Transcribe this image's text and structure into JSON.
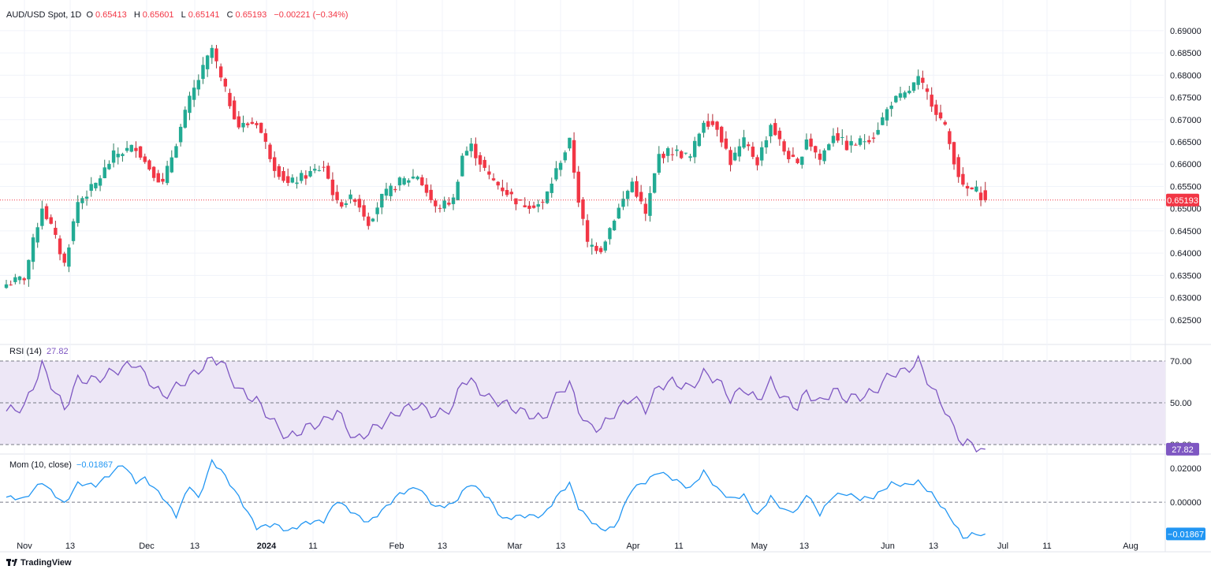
{
  "symbol_legend": {
    "title": "AUD/USD Spot, 1D",
    "open_label": "O",
    "open": "0.65413",
    "high_label": "H",
    "high": "0.65601",
    "low_label": "L",
    "low": "0.65141",
    "close_label": "C",
    "close": "0.65193",
    "change": "−0.00221 (−0.34%)"
  },
  "rsi_legend": {
    "label": "RSI (14)",
    "value": "27.82"
  },
  "mom_legend": {
    "label": "Mom (10, close)",
    "value": "−0.01867"
  },
  "brand": "TradingView",
  "colors": {
    "up": "#22ab94",
    "down": "#f23645",
    "up_wick": "#2e7d60",
    "down_wick": "#b22833",
    "rsi_line": "#7e57c2",
    "rsi_band": "#ede7f6",
    "mom_line": "#2196f3",
    "grid": "#f0f3fa",
    "axis_text": "#131722",
    "last_price": "#f23645"
  },
  "chart_data": [
    {
      "type": "candlestick",
      "title": "AUD/USD Spot, 1D",
      "ylim": [
        0.62,
        0.693
      ],
      "y_ticks": [
        "0.62500",
        "0.63000",
        "0.63500",
        "0.64000",
        "0.64500",
        "0.65000",
        "0.65500",
        "0.66000",
        "0.66500",
        "0.67000",
        "0.67500",
        "0.68000",
        "0.68500",
        "0.69000"
      ],
      "x_ticks": [
        "Nov",
        "13",
        "Dec",
        "13",
        "2024",
        "11",
        "Feb",
        "13",
        "Mar",
        "13",
        "Apr",
        "11",
        "May",
        "13",
        "Jun",
        "13",
        "Jul",
        "11",
        "Aug"
      ],
      "last_price": "0.65193",
      "close_path": [
        {
          "bar": 0,
          "close": 0.633
        },
        {
          "bar": 4,
          "close": 0.6345
        },
        {
          "bar": 8,
          "close": 0.6505
        },
        {
          "bar": 10,
          "close": 0.646
        },
        {
          "bar": 13,
          "close": 0.6375
        },
        {
          "bar": 16,
          "close": 0.6515
        },
        {
          "bar": 20,
          "close": 0.6555
        },
        {
          "bar": 24,
          "close": 0.662
        },
        {
          "bar": 29,
          "close": 0.664
        },
        {
          "bar": 31,
          "close": 0.6605
        },
        {
          "bar": 35,
          "close": 0.6555
        },
        {
          "bar": 41,
          "close": 0.6745
        },
        {
          "bar": 46,
          "close": 0.686
        },
        {
          "bar": 48,
          "close": 0.679
        },
        {
          "bar": 52,
          "close": 0.6685
        },
        {
          "bar": 56,
          "close": 0.6695
        },
        {
          "bar": 60,
          "close": 0.6595
        },
        {
          "bar": 63,
          "close": 0.6555
        },
        {
          "bar": 67,
          "close": 0.6575
        },
        {
          "bar": 71,
          "close": 0.6595
        },
        {
          "bar": 74,
          "close": 0.651
        },
        {
          "bar": 78,
          "close": 0.6525
        },
        {
          "bar": 81,
          "close": 0.647
        },
        {
          "bar": 84,
          "close": 0.6525
        },
        {
          "bar": 88,
          "close": 0.656
        },
        {
          "bar": 92,
          "close": 0.6575
        },
        {
          "bar": 96,
          "close": 0.65
        },
        {
          "bar": 100,
          "close": 0.652
        },
        {
          "bar": 102,
          "close": 0.662
        },
        {
          "bar": 104,
          "close": 0.664
        },
        {
          "bar": 108,
          "close": 0.657
        },
        {
          "bar": 111,
          "close": 0.6545
        },
        {
          "bar": 115,
          "close": 0.651
        },
        {
          "bar": 120,
          "close": 0.651
        },
        {
          "bar": 124,
          "close": 0.661
        },
        {
          "bar": 126,
          "close": 0.665
        },
        {
          "bar": 128,
          "close": 0.652
        },
        {
          "bar": 130,
          "close": 0.642
        },
        {
          "bar": 133,
          "close": 0.641
        },
        {
          "bar": 136,
          "close": 0.648
        },
        {
          "bar": 140,
          "close": 0.656
        },
        {
          "bar": 143,
          "close": 0.6485
        },
        {
          "bar": 146,
          "close": 0.662
        },
        {
          "bar": 149,
          "close": 0.663
        },
        {
          "bar": 153,
          "close": 0.6615
        },
        {
          "bar": 156,
          "close": 0.67
        },
        {
          "bar": 159,
          "close": 0.6685
        },
        {
          "bar": 162,
          "close": 0.6605
        },
        {
          "bar": 165,
          "close": 0.665
        },
        {
          "bar": 168,
          "close": 0.6605
        },
        {
          "bar": 171,
          "close": 0.669
        },
        {
          "bar": 174,
          "close": 0.663
        },
        {
          "bar": 177,
          "close": 0.6595
        },
        {
          "bar": 179,
          "close": 0.666
        },
        {
          "bar": 182,
          "close": 0.661
        },
        {
          "bar": 185,
          "close": 0.667
        },
        {
          "bar": 188,
          "close": 0.664
        },
        {
          "bar": 191,
          "close": 0.665
        },
        {
          "bar": 194,
          "close": 0.6665
        },
        {
          "bar": 198,
          "close": 0.674
        },
        {
          "bar": 201,
          "close": 0.6755
        },
        {
          "bar": 204,
          "close": 0.679
        },
        {
          "bar": 207,
          "close": 0.674
        },
        {
          "bar": 210,
          "close": 0.668
        },
        {
          "bar": 212,
          "close": 0.661
        },
        {
          "bar": 214,
          "close": 0.6545
        },
        {
          "bar": 217,
          "close": 0.654
        },
        {
          "bar": 219,
          "close": 0.65193
        }
      ]
    },
    {
      "type": "line",
      "title": "RSI (14)",
      "ylim": [
        27.0,
        73.0
      ],
      "band": [
        30,
        70
      ],
      "y_ticks": [
        "30.00",
        "50.00",
        "70.00"
      ],
      "last_value": "27.82",
      "points": [
        {
          "bar": 0,
          "value": 46
        },
        {
          "bar": 4,
          "value": 48
        },
        {
          "bar": 8,
          "value": 68
        },
        {
          "bar": 10,
          "value": 59
        },
        {
          "bar": 13,
          "value": 47
        },
        {
          "bar": 16,
          "value": 61
        },
        {
          "bar": 20,
          "value": 61
        },
        {
          "bar": 24,
          "value": 65
        },
        {
          "bar": 29,
          "value": 69
        },
        {
          "bar": 31,
          "value": 63
        },
        {
          "bar": 35,
          "value": 53
        },
        {
          "bar": 41,
          "value": 62
        },
        {
          "bar": 46,
          "value": 71
        },
        {
          "bar": 48,
          "value": 70
        },
        {
          "bar": 52,
          "value": 56
        },
        {
          "bar": 56,
          "value": 51
        },
        {
          "bar": 60,
          "value": 40
        },
        {
          "bar": 63,
          "value": 33
        },
        {
          "bar": 67,
          "value": 38
        },
        {
          "bar": 71,
          "value": 41
        },
        {
          "bar": 74,
          "value": 46
        },
        {
          "bar": 78,
          "value": 32
        },
        {
          "bar": 81,
          "value": 36
        },
        {
          "bar": 84,
          "value": 40
        },
        {
          "bar": 88,
          "value": 46
        },
        {
          "bar": 92,
          "value": 49
        },
        {
          "bar": 96,
          "value": 44
        },
        {
          "bar": 100,
          "value": 48
        },
        {
          "bar": 102,
          "value": 61
        },
        {
          "bar": 104,
          "value": 60
        },
        {
          "bar": 108,
          "value": 52
        },
        {
          "bar": 111,
          "value": 50
        },
        {
          "bar": 115,
          "value": 46
        },
        {
          "bar": 120,
          "value": 42
        },
        {
          "bar": 124,
          "value": 56
        },
        {
          "bar": 126,
          "value": 59
        },
        {
          "bar": 128,
          "value": 47
        },
        {
          "bar": 130,
          "value": 39
        },
        {
          "bar": 133,
          "value": 38
        },
        {
          "bar": 136,
          "value": 45
        },
        {
          "bar": 140,
          "value": 53
        },
        {
          "bar": 143,
          "value": 47
        },
        {
          "bar": 146,
          "value": 58
        },
        {
          "bar": 149,
          "value": 60
        },
        {
          "bar": 153,
          "value": 57
        },
        {
          "bar": 156,
          "value": 64
        },
        {
          "bar": 159,
          "value": 61
        },
        {
          "bar": 162,
          "value": 52
        },
        {
          "bar": 165,
          "value": 57
        },
        {
          "bar": 168,
          "value": 51
        },
        {
          "bar": 171,
          "value": 60
        },
        {
          "bar": 174,
          "value": 52
        },
        {
          "bar": 177,
          "value": 48
        },
        {
          "bar": 179,
          "value": 55
        },
        {
          "bar": 182,
          "value": 50
        },
        {
          "bar": 185,
          "value": 56
        },
        {
          "bar": 188,
          "value": 52
        },
        {
          "bar": 191,
          "value": 53
        },
        {
          "bar": 194,
          "value": 55
        },
        {
          "bar": 198,
          "value": 64
        },
        {
          "bar": 201,
          "value": 65
        },
        {
          "bar": 204,
          "value": 70
        },
        {
          "bar": 207,
          "value": 57
        },
        {
          "bar": 210,
          "value": 47
        },
        {
          "bar": 212,
          "value": 37
        },
        {
          "bar": 214,
          "value": 31
        },
        {
          "bar": 216,
          "value": 30
        },
        {
          "bar": 217,
          "value": 29
        },
        {
          "bar": 219,
          "value": 27.82
        }
      ]
    },
    {
      "type": "line",
      "title": "Mom (10, close)",
      "ylim": [
        -0.0245,
        0.0265
      ],
      "zero_line": 0,
      "y_ticks": [
        "0.00000",
        "0.02000"
      ],
      "last_value": "−0.01867",
      "points": [
        {
          "bar": 0,
          "value": 0.003
        },
        {
          "bar": 4,
          "value": 0.002
        },
        {
          "bar": 8,
          "value": 0.012
        },
        {
          "bar": 10,
          "value": 0.0065
        },
        {
          "bar": 13,
          "value": -0.001
        },
        {
          "bar": 16,
          "value": 0.011
        },
        {
          "bar": 20,
          "value": 0.01
        },
        {
          "bar": 24,
          "value": 0.018
        },
        {
          "bar": 26,
          "value": 0.0225
        },
        {
          "bar": 29,
          "value": 0.012
        },
        {
          "bar": 31,
          "value": 0.014
        },
        {
          "bar": 35,
          "value": 0.003
        },
        {
          "bar": 38,
          "value": -0.008
        },
        {
          "bar": 41,
          "value": 0.01
        },
        {
          "bar": 43,
          "value": 0.002
        },
        {
          "bar": 46,
          "value": 0.024
        },
        {
          "bar": 48,
          "value": 0.019
        },
        {
          "bar": 52,
          "value": 0.003
        },
        {
          "bar": 56,
          "value": -0.015
        },
        {
          "bar": 60,
          "value": -0.013
        },
        {
          "bar": 63,
          "value": -0.017
        },
        {
          "bar": 67,
          "value": -0.012
        },
        {
          "bar": 71,
          "value": -0.011
        },
        {
          "bar": 74,
          "value": 0.001
        },
        {
          "bar": 78,
          "value": -0.007
        },
        {
          "bar": 81,
          "value": -0.012
        },
        {
          "bar": 84,
          "value": -0.005
        },
        {
          "bar": 88,
          "value": 0.005
        },
        {
          "bar": 92,
          "value": 0.009
        },
        {
          "bar": 96,
          "value": -0.003
        },
        {
          "bar": 100,
          "value": -0.001
        },
        {
          "bar": 102,
          "value": 0.006
        },
        {
          "bar": 104,
          "value": 0.011
        },
        {
          "bar": 108,
          "value": 0.002
        },
        {
          "bar": 111,
          "value": -0.01
        },
        {
          "bar": 115,
          "value": -0.008
        },
        {
          "bar": 120,
          "value": -0.008
        },
        {
          "bar": 124,
          "value": 0.006
        },
        {
          "bar": 126,
          "value": 0.011
        },
        {
          "bar": 128,
          "value": -0.003
        },
        {
          "bar": 130,
          "value": -0.009
        },
        {
          "bar": 133,
          "value": -0.016
        },
        {
          "bar": 136,
          "value": -0.015
        },
        {
          "bar": 140,
          "value": 0.008
        },
        {
          "bar": 143,
          "value": 0.012
        },
        {
          "bar": 146,
          "value": 0.018
        },
        {
          "bar": 149,
          "value": 0.014
        },
        {
          "bar": 153,
          "value": 0.008
        },
        {
          "bar": 156,
          "value": 0.018
        },
        {
          "bar": 159,
          "value": 0.008
        },
        {
          "bar": 162,
          "value": 0.002
        },
        {
          "bar": 165,
          "value": 0.004
        },
        {
          "bar": 168,
          "value": -0.008
        },
        {
          "bar": 171,
          "value": 0.003
        },
        {
          "bar": 174,
          "value": -0.005
        },
        {
          "bar": 177,
          "value": -0.005
        },
        {
          "bar": 179,
          "value": 0.005
        },
        {
          "bar": 182,
          "value": -0.007
        },
        {
          "bar": 185,
          "value": 0.004
        },
        {
          "bar": 188,
          "value": 0.005
        },
        {
          "bar": 191,
          "value": 0.002
        },
        {
          "bar": 194,
          "value": 0.003
        },
        {
          "bar": 198,
          "value": 0.011
        },
        {
          "bar": 201,
          "value": 0.01
        },
        {
          "bar": 204,
          "value": 0.012
        },
        {
          "bar": 207,
          "value": 0.005
        },
        {
          "bar": 210,
          "value": -0.005
        },
        {
          "bar": 212,
          "value": -0.012
        },
        {
          "bar": 214,
          "value": -0.021
        },
        {
          "bar": 216,
          "value": -0.019
        },
        {
          "bar": 219,
          "value": -0.01867
        }
      ]
    }
  ]
}
